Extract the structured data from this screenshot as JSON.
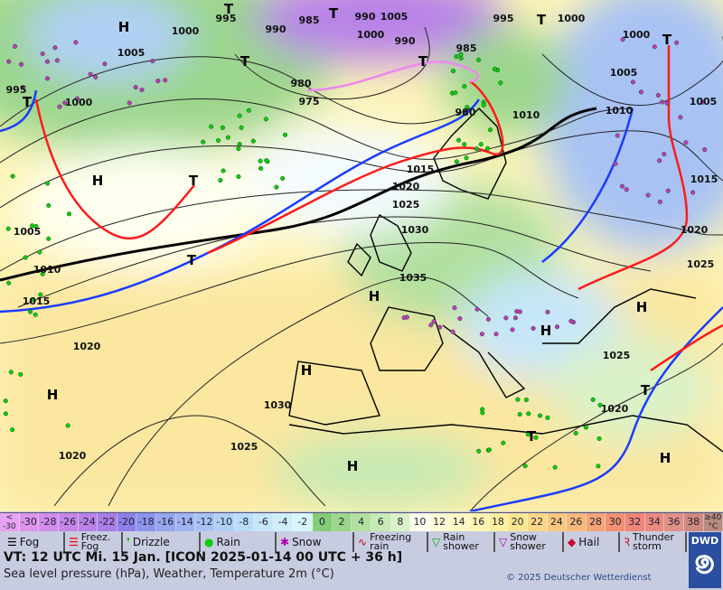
{
  "map": {
    "pressure_labels": [
      "995",
      "985",
      "990",
      "1005",
      "995",
      "1000",
      "1000",
      "990",
      "1000",
      "990",
      "985",
      "1000",
      "1005",
      "1005",
      "995",
      "1000",
      "980",
      "975",
      "980",
      "1010",
      "1010",
      "1005",
      "1015",
      "1020",
      "1025",
      "1030",
      "1015",
      "1020",
      "1005",
      "1010",
      "1025",
      "1035",
      "1015",
      "1020",
      "1025",
      "1030",
      "1020",
      "1025",
      "1020"
    ],
    "high_label": "H",
    "low_label": "T",
    "colors": {
      "cold_front": "#1a3cff",
      "warm_front": "#ff1a1a",
      "occlusion": "#ee88ee",
      "isobar": "#222222",
      "high_pressure_ridge": "#000000"
    }
  },
  "colorbar": {
    "cells": [
      {
        "label": "<\n-30",
        "color": "#e8a2f2"
      },
      {
        "label": "-30",
        "color": "#dc94ee"
      },
      {
        "label": "-28",
        "color": "#d28cec"
      },
      {
        "label": "-26",
        "color": "#c686ea"
      },
      {
        "label": "-24",
        "color": "#b882e8"
      },
      {
        "label": "-22",
        "color": "#a97ee6"
      },
      {
        "label": "-20",
        "color": "#8c80ea"
      },
      {
        "label": "-18",
        "color": "#8c94ee"
      },
      {
        "label": "-16",
        "color": "#96a6f0"
      },
      {
        "label": "-14",
        "color": "#a0b4f2"
      },
      {
        "label": "-12",
        "color": "#a8c2f4"
      },
      {
        "label": "-10",
        "color": "#b0d0f6"
      },
      {
        "label": "-8",
        "color": "#badcf8"
      },
      {
        "label": "-6",
        "color": "#c6e6fa"
      },
      {
        "label": "-4",
        "color": "#cfeefc"
      },
      {
        "label": "-2",
        "color": "#d9f6fd"
      },
      {
        "label": "0",
        "color": "#84cc78"
      },
      {
        "label": "2",
        "color": "#9cd68c"
      },
      {
        "label": "4",
        "color": "#b2e0a0"
      },
      {
        "label": "6",
        "color": "#c6eab4"
      },
      {
        "label": "8",
        "color": "#daf2c8"
      },
      {
        "label": "10",
        "color": "#fffff0"
      },
      {
        "label": "12",
        "color": "#fffbd8"
      },
      {
        "label": "14",
        "color": "#fff8c6"
      },
      {
        "label": "16",
        "color": "#fff4b2"
      },
      {
        "label": "18",
        "color": "#fff09e"
      },
      {
        "label": "20",
        "color": "#fde690"
      },
      {
        "label": "22",
        "color": "#fbd888"
      },
      {
        "label": "24",
        "color": "#f9c880"
      },
      {
        "label": "26",
        "color": "#f7b87c"
      },
      {
        "label": "28",
        "color": "#f5a478"
      },
      {
        "label": "30",
        "color": "#f29074"
      },
      {
        "label": "32",
        "color": "#ef8478"
      },
      {
        "label": "34",
        "color": "#e88a80"
      },
      {
        "label": "36",
        "color": "#e09088"
      },
      {
        "label": "38",
        "color": "#cc8a80"
      },
      {
        "label": "≥40\n°C",
        "color": "#b88a80"
      }
    ]
  },
  "legend": [
    {
      "label": "Fog",
      "icon": "fog-icon",
      "glyph": "☰",
      "color": "#000"
    },
    {
      "label": "Freez.\nFog",
      "icon": "freezing-fog-icon",
      "glyph": "☰",
      "color": "#e00"
    },
    {
      "label": "Drizzle",
      "icon": "drizzle-icon",
      "glyph": "❜",
      "color": "#0a0"
    },
    {
      "label": "Rain",
      "icon": "rain-icon",
      "glyph": "●",
      "color": "#1c1"
    },
    {
      "label": "Snow",
      "icon": "snow-icon",
      "glyph": "✱",
      "color": "#a0a"
    },
    {
      "label": "Freezing\nrain",
      "icon": "freezing-rain-icon",
      "glyph": "∿",
      "color": "#c00"
    },
    {
      "label": "Rain\nshower",
      "icon": "rain-shower-icon",
      "glyph": "▽",
      "color": "#0a0"
    },
    {
      "label": "Snow\nshower",
      "icon": "snow-shower-icon",
      "glyph": "▽",
      "color": "#a0a"
    },
    {
      "label": "Hail",
      "icon": "hail-icon",
      "glyph": "◆",
      "color": "#c03"
    },
    {
      "label": "Thunder\nstorm",
      "icon": "thunderstorm-icon",
      "glyph": "Ꝛ",
      "color": "#c00"
    }
  ],
  "footer": {
    "valid_time": "VT: 12 UTC Mi.   15 Jan. [ICON 2025-01-14  00 UTC + 36 h]",
    "subtitle": "Sea level pressure (hPa), Weather, Temperature 2m (°C)",
    "copyright": "© 2025 Deutscher Wetterdienst",
    "logo": "DWD"
  }
}
